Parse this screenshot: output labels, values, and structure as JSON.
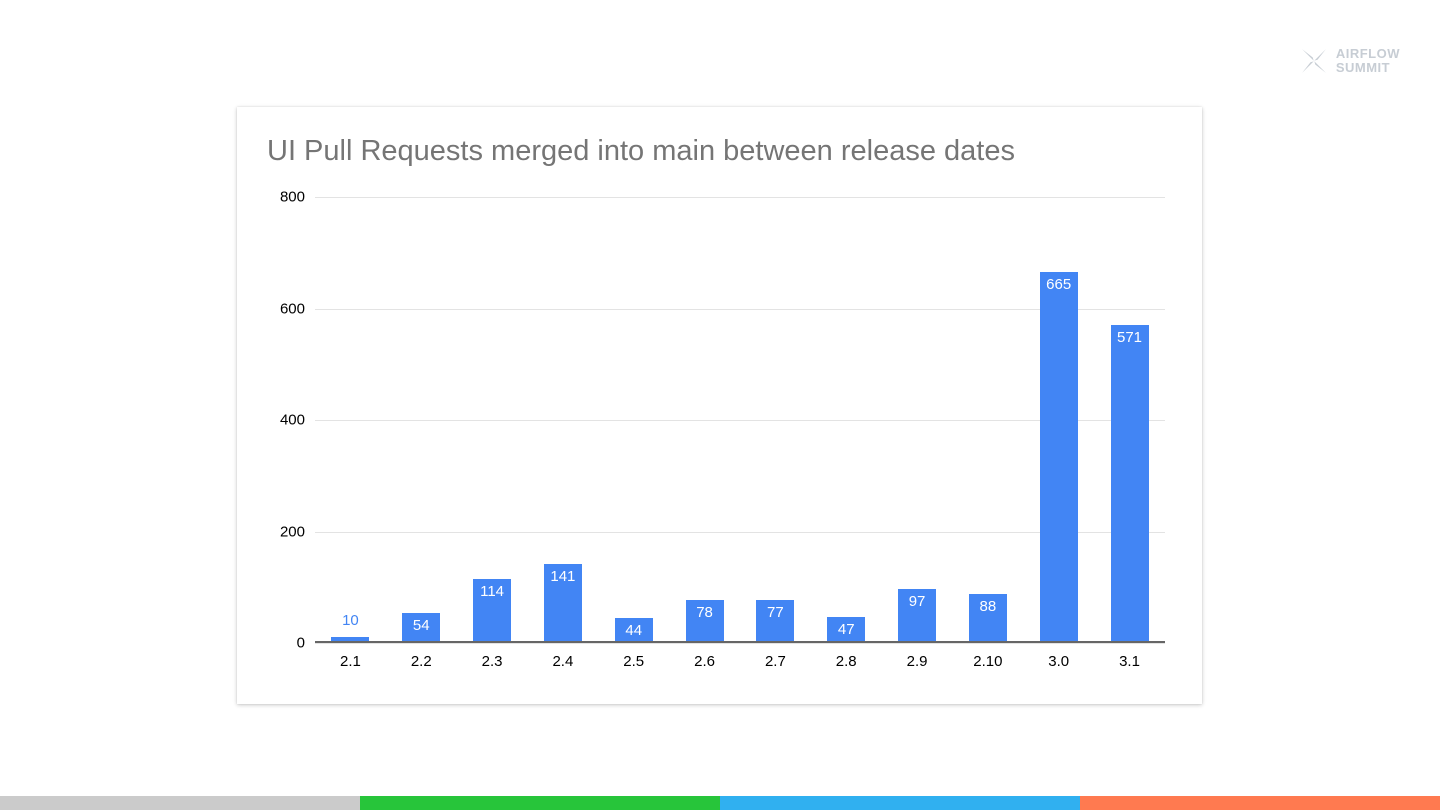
{
  "slide": {
    "logo": {
      "line1": "AIRFLOW",
      "line2": "SUMMIT",
      "color": "#c7cdd4"
    },
    "footer_stripe_colors": [
      "#cbcbcb",
      "#27c53a",
      "#30b0f0",
      "#ff7a50"
    ]
  },
  "chart_data": {
    "type": "bar",
    "title": "UI Pull Requests merged into main between release dates",
    "categories": [
      "2.1",
      "2.2",
      "2.3",
      "2.4",
      "2.5",
      "2.6",
      "2.7",
      "2.8",
      "2.9",
      "2.10",
      "3.0",
      "3.1"
    ],
    "values": [
      10,
      54,
      114,
      141,
      44,
      78,
      77,
      47,
      97,
      88,
      665,
      571
    ],
    "xlabel": "",
    "ylabel": "",
    "ylim": [
      0,
      800
    ],
    "yticks": [
      0,
      200,
      400,
      600,
      800
    ],
    "grid": true,
    "legend": false,
    "bar_color": "#4285f4",
    "label_color_inside": "#ffffff",
    "label_color_outside": "#4285f4"
  }
}
